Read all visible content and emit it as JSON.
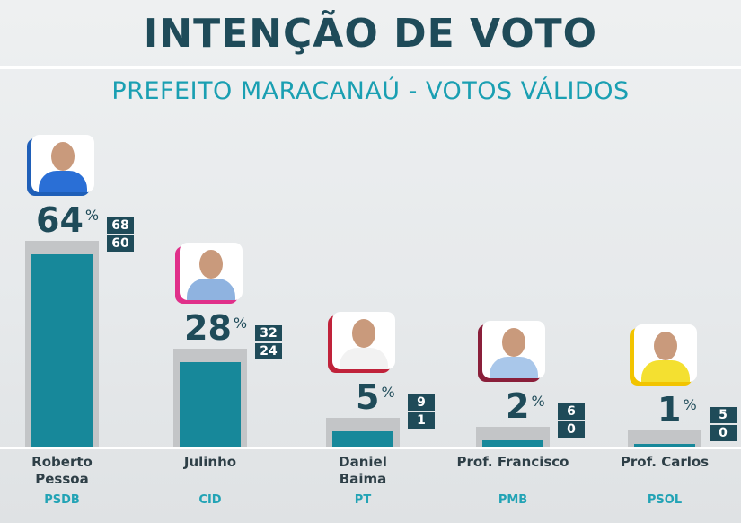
{
  "header": {
    "title": "INTENÇÃO DE VOTO",
    "subtitle": "PREFEITO MARACANAÚ - VOTOS VÁLIDOS"
  },
  "chart_data": {
    "type": "bar",
    "title": "INTENÇÃO DE VOTO",
    "subtitle": "PREFEITO MARACANAÚ - VOTOS VÁLIDOS",
    "unit": "%",
    "ylim": [
      0,
      100
    ],
    "grid": false,
    "bar_color": "#17889a",
    "categories": [
      "Roberto Pessoa",
      "Julinho",
      "Daniel Baima",
      "Prof. Francisco",
      "Prof. Carlos"
    ],
    "name_lines": [
      [
        "Roberto",
        "Pessoa"
      ],
      [
        "Julinho"
      ],
      [
        "Daniel",
        "Baima"
      ],
      [
        "Prof. Francisco"
      ],
      [
        "Prof. Carlos"
      ]
    ],
    "parties": [
      "PSDB",
      "CID",
      "PT",
      "PMB",
      "PSOL"
    ],
    "party_colors": [
      "#1f5fb8",
      "#e0308a",
      "#c0223a",
      "#8a1f3a",
      "#f2c400"
    ],
    "values": [
      64,
      28,
      5,
      2,
      1
    ],
    "range_high": [
      68,
      32,
      9,
      6,
      5
    ],
    "range_low": [
      60,
      24,
      1,
      0,
      0
    ]
  }
}
